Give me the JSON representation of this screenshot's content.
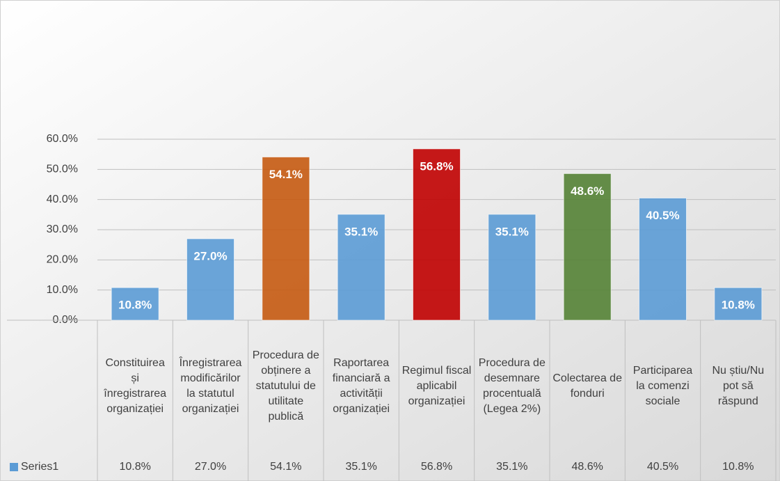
{
  "chart_data": {
    "type": "bar",
    "categories": [
      "Constituirea și înregistrarea organizației",
      "Înregistrarea modificărilor la statutul organizației",
      "Procedura de obținere a statutului de utilitate publică",
      "Raportarea financiară a activității organizației",
      "Regimul fiscal aplicabil organizației",
      "Procedura de desemnare procentuală (Legea 2%)",
      "Colectarea de fonduri",
      "Participarea la comenzi sociale",
      "Nu știu/Nu pot să răspund"
    ],
    "series": [
      {
        "name": "Series1",
        "color": "#5b9bd5",
        "colors": [
          "#5b9bd5",
          "#5b9bd5",
          "#c55a11",
          "#5b9bd5",
          "#c00000",
          "#5b9bd5",
          "#548235",
          "#5b9bd5",
          "#5b9bd5"
        ],
        "values": [
          10.8,
          27.0,
          54.1,
          35.1,
          56.8,
          35.1,
          48.6,
          40.5,
          10.8
        ],
        "value_labels": [
          "10.8%",
          "27.0%",
          "54.1%",
          "35.1%",
          "56.8%",
          "35.1%",
          "48.6%",
          "40.5%",
          "10.8%"
        ]
      }
    ],
    "ylim": [
      0,
      60
    ],
    "yticks": [
      {
        "value": 0,
        "label": "0.0%"
      },
      {
        "value": 10,
        "label": "10.0%"
      },
      {
        "value": 20,
        "label": "20.0%"
      },
      {
        "value": 30,
        "label": "30.0%"
      },
      {
        "value": 40,
        "label": "40.0%"
      },
      {
        "value": 50,
        "label": "50.0%"
      },
      {
        "value": 60,
        "label": "60.0%"
      }
    ],
    "grid": true,
    "data_table": true
  }
}
